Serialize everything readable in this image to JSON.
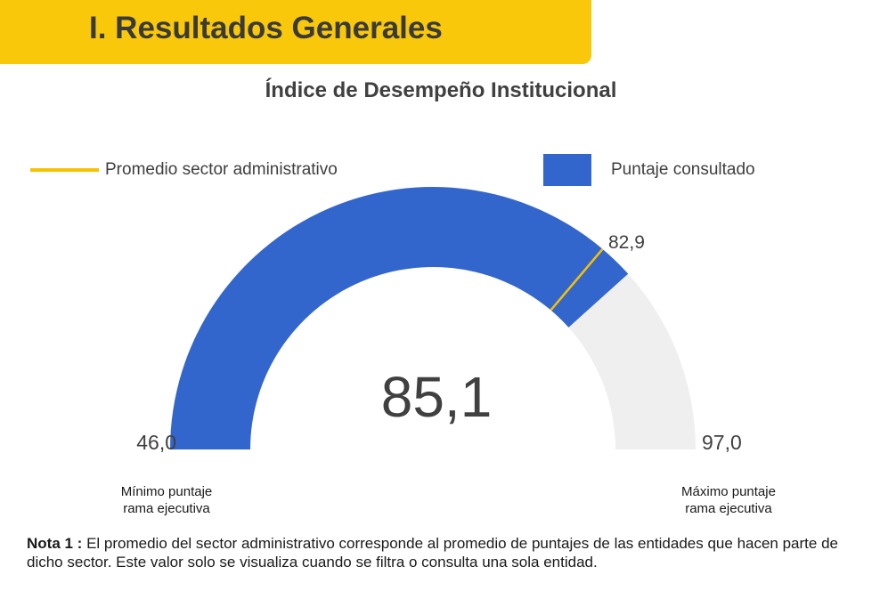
{
  "header": {
    "title": "I. Resultados Generales"
  },
  "chart_title": "Índice de Desempeño Institucional",
  "legend": {
    "average_label": "Promedio sector administrativo",
    "score_label": "Puntaje consultado"
  },
  "colors": {
    "banner": "#f9c80a",
    "score": "#3366cc",
    "average": "#f6c200",
    "track": "#f0efef"
  },
  "chart_data": {
    "type": "gauge",
    "title": "Índice de Desempeño Institucional",
    "min": 46.0,
    "max": 97.0,
    "value": 85.1,
    "average": 82.9,
    "labels": {
      "min": "46,0",
      "max": "97,0",
      "value": "85,1",
      "average": "82,9"
    },
    "min_caption": [
      "Mínimo puntaje",
      "rama ejecutiva"
    ],
    "max_caption": [
      "Máximo puntaje",
      "rama ejecutiva"
    ]
  },
  "note": {
    "label": "Nota 1 :",
    "text": "El promedio del sector administrativo corresponde al promedio de puntajes de las entidades que hacen parte de dicho sector. Este valor solo se visualiza cuando se filtra o consulta una sola entidad."
  }
}
